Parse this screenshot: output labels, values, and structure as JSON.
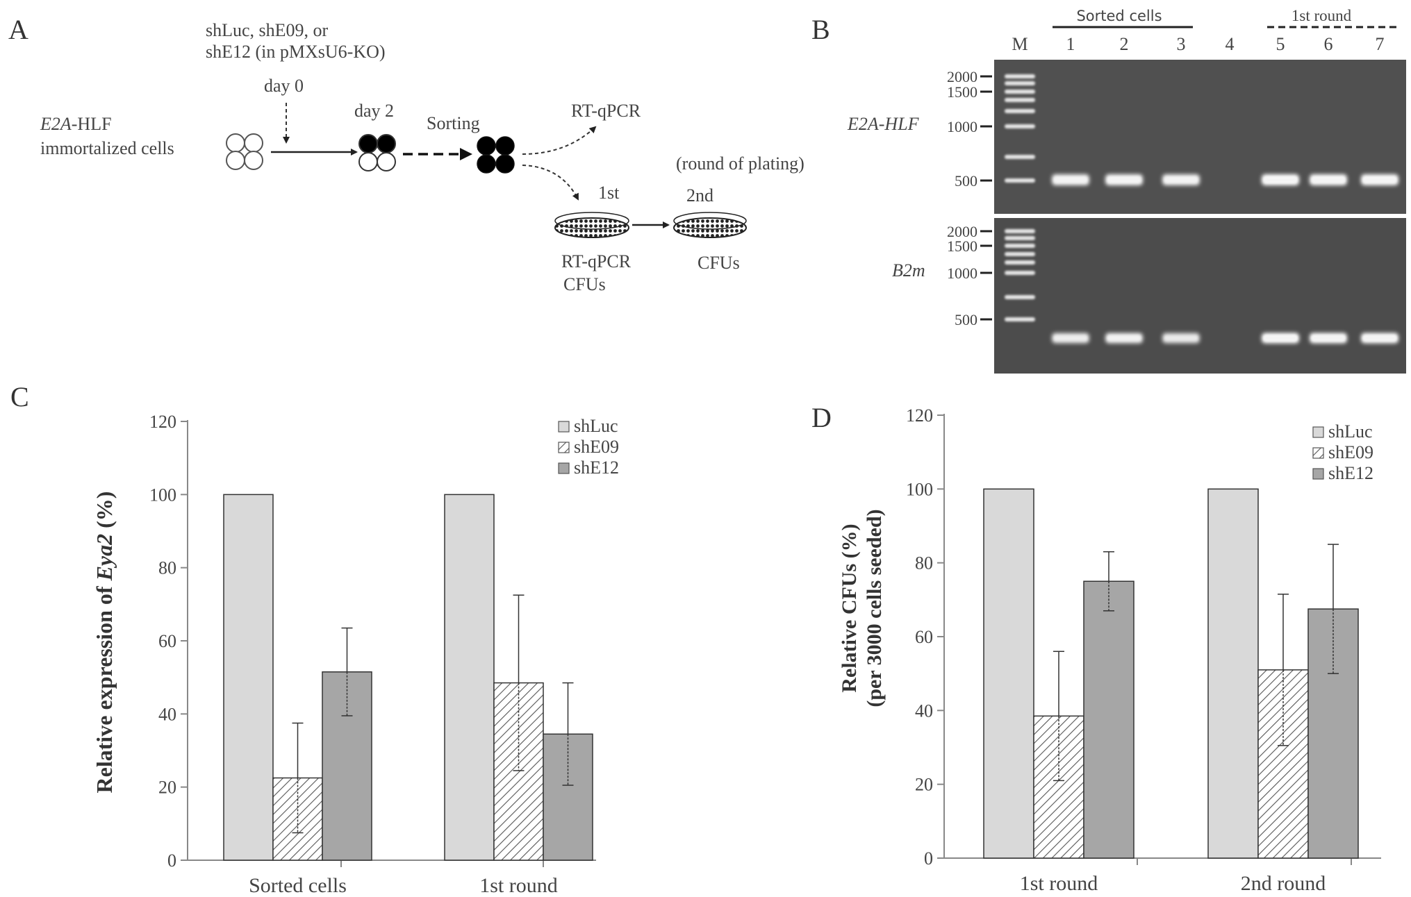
{
  "panel_labels": {
    "a": "A",
    "b": "B",
    "c": "C",
    "d": "D"
  },
  "schematic": {
    "shrna_line1": "shLuc, shE09, or",
    "shrna_line2": "shE12 (in pMXsU6-KO)",
    "day0": "day 0",
    "day2": "day 2",
    "cells_name_italic": "E2A",
    "cells_name_rest": "-HLF",
    "cells_line2": "immortalized cells",
    "sorting": "Sorting",
    "rtqpcr_top": "RT-qPCR",
    "round_of_plating": "(round of plating)",
    "first": "1st",
    "second": "2nd",
    "rtqpcr_bottom": "RT-qPCR",
    "cfus_left": "CFUs",
    "cfus_right": "CFUs"
  },
  "gel": {
    "marker_lane": "M",
    "lanes": [
      "1",
      "2",
      "3",
      "4",
      "5",
      "6",
      "7"
    ],
    "group_sorted": "Sorted cells",
    "group_round": "1st round",
    "top_gene": "E2A-HLF",
    "bottom_gene": "B2m",
    "top_sizes": [
      "2000",
      "1500",
      "1000",
      "500"
    ],
    "bottom_sizes": [
      "2000",
      "1500",
      "1000",
      "500"
    ],
    "top_band_intensity": [
      0.85,
      0.9,
      0.85,
      0,
      1.0,
      0.95,
      0.95
    ],
    "bottom_band_intensity": [
      0.7,
      0.8,
      0.65,
      0,
      1.0,
      0.95,
      0.95
    ]
  },
  "chart_data": [
    {
      "type": "bar",
      "panel": "C",
      "categories": [
        "Sorted cells",
        "1st round"
      ],
      "series": [
        {
          "name": "shLuc",
          "values": [
            100,
            100
          ],
          "errors": [
            null,
            null
          ],
          "fill": "#d9d9d9",
          "pattern": "solid"
        },
        {
          "name": "shE09",
          "values": [
            22.5,
            48.5
          ],
          "errors": [
            15,
            24
          ],
          "fill": "#ffffff",
          "pattern": "hatch"
        },
        {
          "name": "shE12",
          "values": [
            51.5,
            34.5
          ],
          "errors": [
            12,
            14
          ],
          "fill": "#a6a6a6",
          "pattern": "solid"
        }
      ],
      "ylabel_pre": "Relative expression of ",
      "ylabel_italic": "Eya2",
      "ylabel_post": " (%)",
      "ylim": [
        0,
        120
      ],
      "yticks": [
        "0",
        "20",
        "40",
        "60",
        "80",
        "100",
        "120"
      ],
      "legend_position": "top-right",
      "grid": false
    },
    {
      "type": "bar",
      "panel": "D",
      "categories": [
        "1st round",
        "2nd round"
      ],
      "series": [
        {
          "name": "shLuc",
          "values": [
            100,
            100
          ],
          "errors": [
            null,
            null
          ],
          "fill": "#d9d9d9",
          "pattern": "solid"
        },
        {
          "name": "shE09",
          "values": [
            38.5,
            51
          ],
          "errors": [
            17.5,
            20.5
          ],
          "fill": "#ffffff",
          "pattern": "hatch"
        },
        {
          "name": "shE12",
          "values": [
            75,
            67.5
          ],
          "errors": [
            8,
            17.5
          ],
          "fill": "#a6a6a6",
          "pattern": "solid"
        }
      ],
      "ylabel_line1": "Relative CFUs (%)",
      "ylabel_line2": "(per 3000 cells seeded)",
      "ylim": [
        0,
        120
      ],
      "yticks": [
        "0",
        "20",
        "40",
        "60",
        "80",
        "100",
        "120"
      ],
      "legend_position": "top-right",
      "grid": false
    }
  ]
}
